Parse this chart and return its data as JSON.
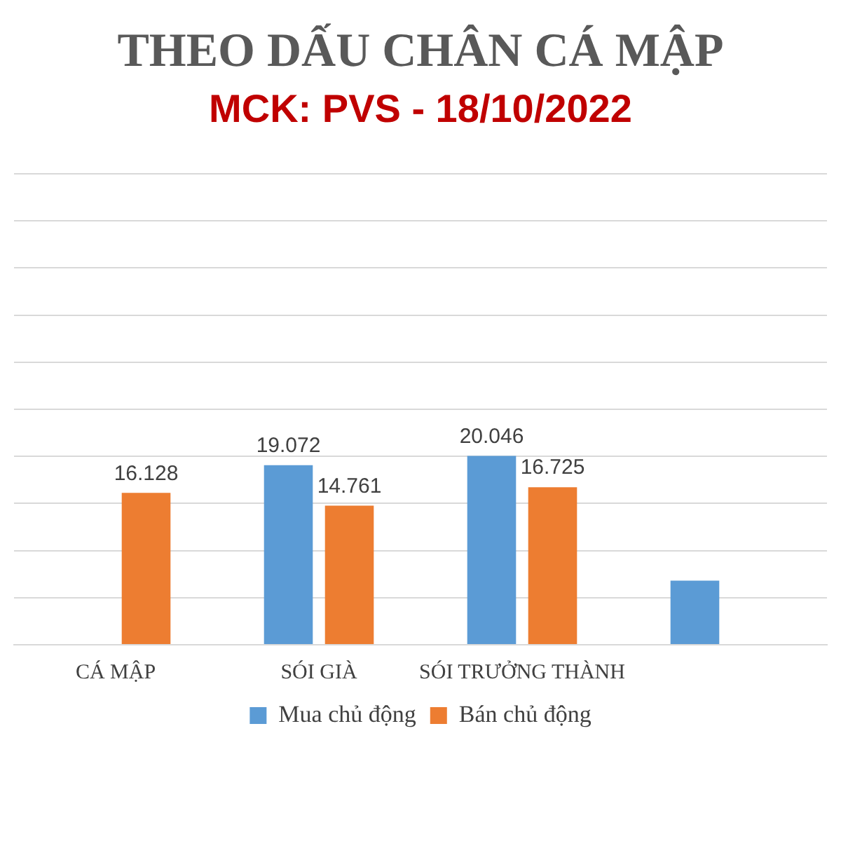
{
  "chart_data": {
    "type": "bar",
    "title": "THEO DẤU CHÂN CÁ MẬP",
    "subtitle": "MCK: PVS - 18/10/2022",
    "categories": [
      "CÁ MẬP",
      "SÓI GIÀ",
      "SÓI TRƯỞNG THÀNH",
      null
    ],
    "series": [
      {
        "name": "Mua chủ động",
        "color": "#5b9bd5",
        "values": [
          null,
          19.072,
          20.046,
          6.8
        ],
        "value_labels": [
          null,
          "19.072",
          "20.046",
          null
        ]
      },
      {
        "name": "Bán chủ động",
        "color": "#ed7d31",
        "values": [
          16.128,
          14.761,
          16.725,
          null
        ],
        "value_labels": [
          "16.128",
          "14.761",
          "16.725",
          null
        ]
      }
    ],
    "ylim": [
      0,
      50
    ],
    "yticks": [
      {
        "value": 0,
        "label": null
      },
      {
        "value": 5,
        "label": null
      },
      {
        "value": 10,
        "label": null
      },
      {
        "value": 15,
        "label": null
      },
      {
        "value": 20,
        "label": null
      },
      {
        "value": 25,
        "label": null
      },
      {
        "value": 30,
        "label": null
      },
      {
        "value": 35,
        "label": null
      },
      {
        "value": 40,
        "label": null
      },
      {
        "value": 45,
        "label": null
      },
      {
        "value": 50,
        "label": null
      }
    ],
    "grid": "y",
    "legend": "bottom",
    "tick_labels": "x"
  }
}
